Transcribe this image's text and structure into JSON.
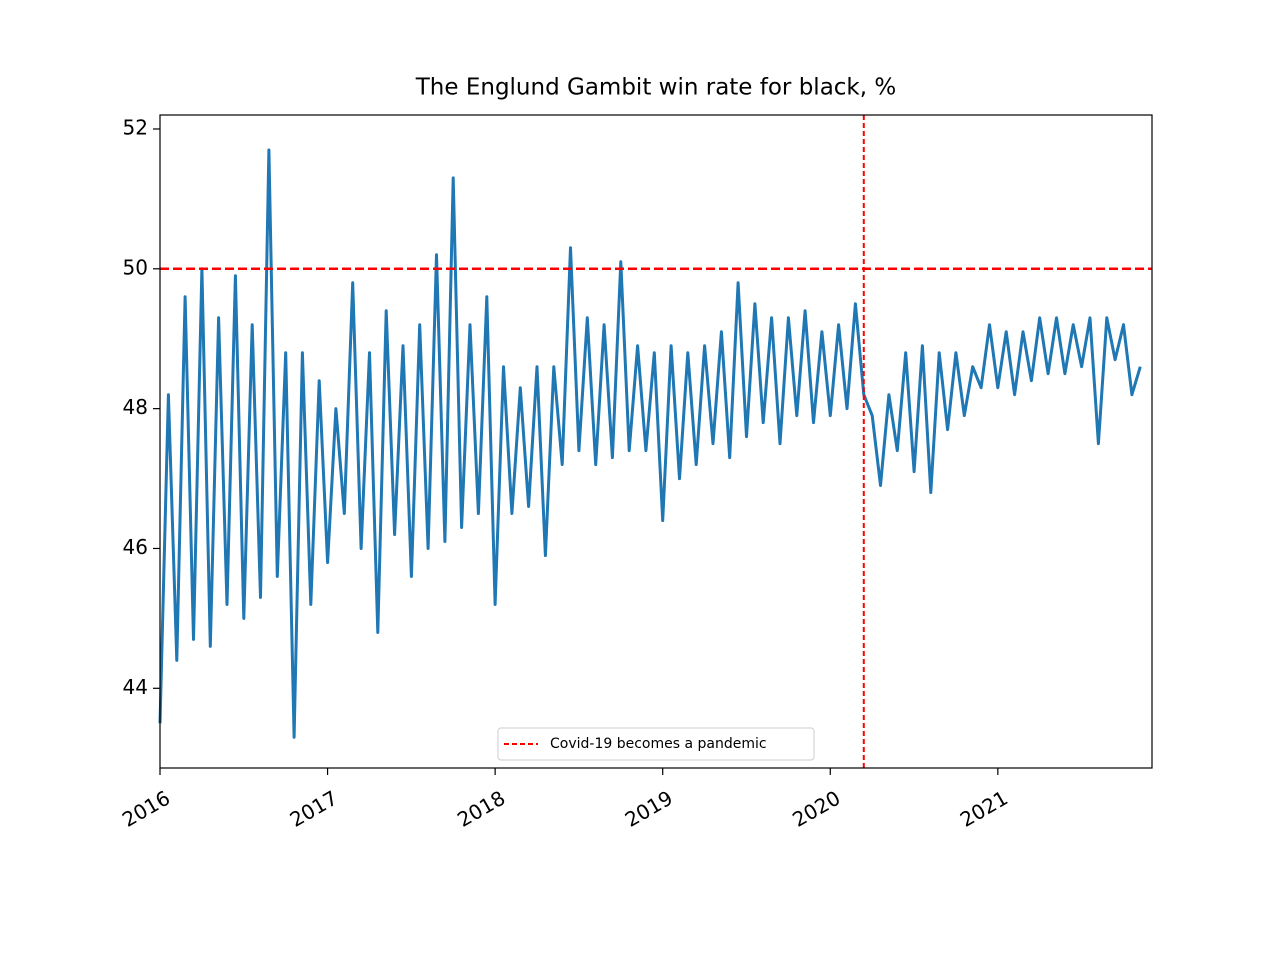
{
  "chart_data": {
    "type": "line",
    "title": "The Englund Gambit win rate for black, %",
    "x": [
      2016.0,
      2016.05,
      2016.1,
      2016.15,
      2016.2,
      2016.25,
      2016.3,
      2016.35,
      2016.4,
      2016.45,
      2016.5,
      2016.55,
      2016.6,
      2016.65,
      2016.7,
      2016.75,
      2016.8,
      2016.85,
      2016.9,
      2016.95,
      2017.0,
      2017.05,
      2017.1,
      2017.15,
      2017.2,
      2017.25,
      2017.3,
      2017.35,
      2017.4,
      2017.45,
      2017.5,
      2017.55,
      2017.6,
      2017.65,
      2017.7,
      2017.75,
      2017.8,
      2017.85,
      2017.9,
      2017.95,
      2018.0,
      2018.05,
      2018.1,
      2018.15,
      2018.2,
      2018.25,
      2018.3,
      2018.35,
      2018.4,
      2018.45,
      2018.5,
      2018.55,
      2018.6,
      2018.65,
      2018.7,
      2018.75,
      2018.8,
      2018.85,
      2018.9,
      2018.95,
      2019.0,
      2019.05,
      2019.1,
      2019.15,
      2019.2,
      2019.25,
      2019.3,
      2019.35,
      2019.4,
      2019.45,
      2019.5,
      2019.55,
      2019.6,
      2019.65,
      2019.7,
      2019.75,
      2019.8,
      2019.85,
      2019.9,
      2019.95,
      2020.0,
      2020.05,
      2020.1,
      2020.15,
      2020.2,
      2020.25,
      2020.3,
      2020.35,
      2020.4,
      2020.45,
      2020.5,
      2020.55,
      2020.6,
      2020.65,
      2020.7,
      2020.75,
      2020.8,
      2020.85,
      2020.9,
      2020.95,
      2021.0,
      2021.05,
      2021.1,
      2021.15,
      2021.2,
      2021.25,
      2021.3,
      2021.35,
      2021.4,
      2021.45,
      2021.5,
      2021.55,
      2021.6,
      2021.65,
      2021.7,
      2021.75,
      2021.8,
      2021.85
    ],
    "values": [
      43.5,
      48.2,
      44.4,
      49.6,
      44.7,
      50.0,
      44.6,
      49.3,
      45.2,
      49.9,
      45.0,
      49.2,
      45.3,
      51.7,
      45.6,
      48.8,
      43.3,
      48.8,
      45.2,
      48.4,
      45.8,
      48.0,
      46.5,
      49.8,
      46.0,
      48.8,
      44.8,
      49.4,
      46.2,
      48.9,
      45.6,
      49.2,
      46.0,
      50.2,
      46.1,
      51.3,
      46.3,
      49.2,
      46.5,
      49.6,
      45.2,
      48.6,
      46.5,
      48.3,
      46.6,
      48.6,
      45.9,
      48.6,
      47.2,
      50.3,
      47.4,
      49.3,
      47.2,
      49.2,
      47.3,
      50.1,
      47.4,
      48.9,
      47.4,
      48.8,
      46.4,
      48.9,
      47.0,
      48.8,
      47.2,
      48.9,
      47.5,
      49.1,
      47.3,
      49.8,
      47.6,
      49.5,
      47.8,
      49.3,
      47.5,
      49.3,
      47.9,
      49.4,
      47.8,
      49.1,
      47.9,
      49.2,
      48.0,
      49.5,
      48.2,
      47.9,
      46.9,
      48.2,
      47.4,
      48.8,
      47.1,
      48.9,
      46.8,
      48.8,
      47.7,
      48.8,
      47.9,
      48.6,
      48.3,
      49.2,
      48.3,
      49.1,
      48.2,
      49.1,
      48.4,
      49.3,
      48.5,
      49.3,
      48.5,
      49.2,
      48.6,
      49.3,
      47.5,
      49.3,
      48.7,
      49.2,
      48.2,
      48.6
    ],
    "color": "#1f77b4",
    "xlim": [
      2016,
      2021.92
    ],
    "xticks": [
      2016,
      2017,
      2018,
      2019,
      2020,
      2021
    ],
    "ylim": [
      42.86,
      52.2
    ],
    "yticks": [
      44,
      46,
      48,
      50,
      52
    ],
    "hlines": [
      {
        "y": 50,
        "color": "#ff0000"
      }
    ],
    "vlines": [
      {
        "x": 2020.2,
        "color": "#ff0000",
        "name": "Covid-19 becomes a pandemic"
      }
    ],
    "legend": "lower center"
  }
}
